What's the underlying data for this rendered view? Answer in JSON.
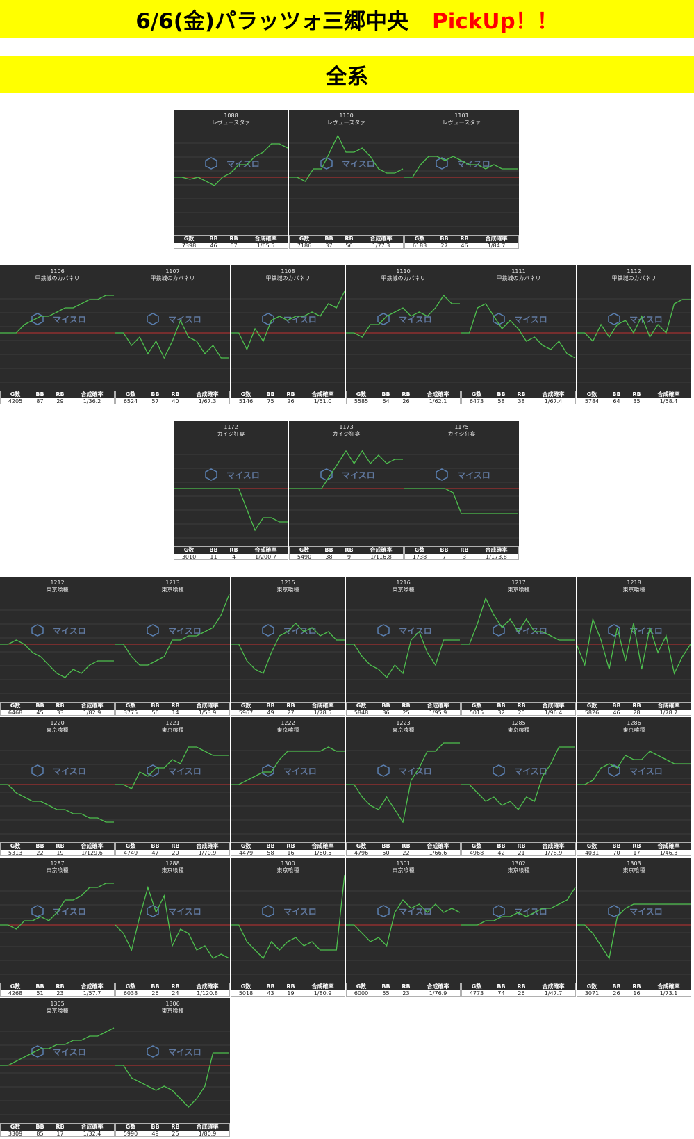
{
  "header": {
    "title": "6/6(金)パラッツォ三郷中央",
    "pickup": "PickUp！！"
  },
  "section": {
    "title": "全系"
  },
  "stat_headers": {
    "g": "G数",
    "bb": "BB",
    "rb": "RB",
    "prob": "合成確率"
  },
  "watermark": "マイスロ",
  "colors": {
    "banner": "#ffff00",
    "pickup": "#ff0000",
    "panel_bg": "#2b2b2b",
    "graph_line": "#4ec04e",
    "zero_line": "#c03030"
  },
  "machines": [
    {
      "num": "1088",
      "name": "レヴュースタァ",
      "g": "7398",
      "bb": "46",
      "rb": "67",
      "prob": "1/65.5",
      "curve": [
        0,
        0,
        -0.05,
        0,
        -0.1,
        -0.2,
        0,
        0.1,
        0.3,
        0.3,
        0.5,
        0.6,
        0.8,
        0.8,
        0.7
      ]
    },
    {
      "num": "1100",
      "name": "レヴュースタァ",
      "g": "7186",
      "bb": "37",
      "rb": "56",
      "prob": "1/77.3",
      "curve": [
        0,
        0,
        -0.1,
        0.2,
        0.2,
        0.6,
        1.0,
        0.6,
        0.6,
        0.7,
        0.5,
        0.2,
        0.1,
        0.1,
        0.2
      ]
    },
    {
      "num": "1101",
      "name": "レヴュースタァ",
      "g": "6183",
      "bb": "27",
      "rb": "46",
      "prob": "1/84.7",
      "curve": [
        0,
        0,
        0.3,
        0.5,
        0.5,
        0.4,
        0.5,
        0.4,
        0.3,
        0.3,
        0.2,
        0.3,
        0.2,
        0.2,
        0.2
      ]
    },
    {
      "num": "1106",
      "name": "甲鉄城のカバネリ",
      "g": "4205",
      "bb": "87",
      "rb": "29",
      "prob": "1/36.2",
      "curve": [
        0,
        0,
        0,
        0.2,
        0.3,
        0.4,
        0.4,
        0.5,
        0.6,
        0.6,
        0.7,
        0.8,
        0.8,
        0.9,
        0.9
      ]
    },
    {
      "num": "1107",
      "name": "甲鉄城のカバネリ",
      "g": "6524",
      "bb": "57",
      "rb": "40",
      "prob": "1/67.3",
      "curve": [
        0,
        0,
        -0.3,
        -0.1,
        -0.5,
        -0.2,
        -0.6,
        -0.2,
        0.3,
        -0.1,
        -0.2,
        -0.5,
        -0.3,
        -0.6,
        -0.6
      ]
    },
    {
      "num": "1108",
      "name": "甲鉄城のカバネリ",
      "g": "5146",
      "bb": "75",
      "rb": "26",
      "prob": "1/51.0",
      "curve": [
        0,
        0,
        -0.4,
        0.1,
        -0.2,
        0.3,
        0.4,
        0.3,
        0.4,
        0.4,
        0.5,
        0.4,
        0.7,
        0.6,
        1.0
      ]
    },
    {
      "num": "1110",
      "name": "甲鉄城のカバネリ",
      "g": "5585",
      "bb": "64",
      "rb": "26",
      "prob": "1/62.1",
      "curve": [
        0,
        0,
        -0.1,
        0.2,
        0.2,
        0.4,
        0.5,
        0.6,
        0.4,
        0.5,
        0.4,
        0.6,
        0.9,
        0.7,
        0.7
      ]
    },
    {
      "num": "1111",
      "name": "甲鉄城のカバネリ",
      "g": "6473",
      "bb": "58",
      "rb": "38",
      "prob": "1/67.4",
      "curve": [
        0,
        0,
        0.6,
        0.7,
        0.4,
        0.1,
        0.3,
        0.1,
        -0.2,
        -0.1,
        -0.3,
        -0.4,
        -0.2,
        -0.5,
        -0.6
      ]
    },
    {
      "num": "1112",
      "name": "甲鉄城のカバネリ",
      "g": "5784",
      "bb": "64",
      "rb": "35",
      "prob": "1/58.4",
      "curve": [
        0,
        0,
        -0.2,
        0.2,
        -0.1,
        0.2,
        0.3,
        0,
        0.4,
        -0.1,
        0.2,
        0,
        0.7,
        0.8,
        0.8
      ]
    },
    {
      "num": "1172",
      "name": "カイジ狂宴",
      "g": "3010",
      "bb": "11",
      "rb": "4",
      "prob": "1/200.7",
      "curve": [
        0,
        0,
        0,
        0,
        0,
        0,
        0,
        0,
        0,
        -0.5,
        -1.0,
        -0.7,
        -0.7,
        -0.8,
        -0.8
      ]
    },
    {
      "num": "1173",
      "name": "カイジ狂宴",
      "g": "5490",
      "bb": "38",
      "rb": "9",
      "prob": "1/116.8",
      "curve": [
        0,
        0,
        0,
        0,
        0,
        0.3,
        0.6,
        0.9,
        0.6,
        0.9,
        0.6,
        0.8,
        0.6,
        0.7,
        0.7
      ]
    },
    {
      "num": "1175",
      "name": "カイジ狂宴",
      "g": "1738",
      "bb": "7",
      "rb": "3",
      "prob": "1/173.8",
      "curve": [
        0,
        0,
        0,
        0,
        0,
        0,
        -0.1,
        -0.6,
        -0.6,
        -0.6,
        -0.6,
        -0.6,
        -0.6,
        -0.6,
        -0.6
      ]
    },
    {
      "num": "1212",
      "name": "東京喰種",
      "g": "6468",
      "bb": "45",
      "rb": "33",
      "prob": "1/82.9",
      "curve": [
        0,
        0,
        0.1,
        0,
        -0.2,
        -0.3,
        -0.5,
        -0.7,
        -0.8,
        -0.6,
        -0.7,
        -0.5,
        -0.4,
        -0.4,
        -0.4
      ]
    },
    {
      "num": "1213",
      "name": "東京喰種",
      "g": "3775",
      "bb": "56",
      "rb": "14",
      "prob": "1/53.9",
      "curve": [
        0,
        0,
        -0.3,
        -0.5,
        -0.5,
        -0.4,
        -0.3,
        0.1,
        0.1,
        0.2,
        0.2,
        0.3,
        0.4,
        0.7,
        1.2
      ]
    },
    {
      "num": "1215",
      "name": "東京喰種",
      "g": "5967",
      "bb": "49",
      "rb": "27",
      "prob": "1/78.5",
      "curve": [
        0,
        0,
        -0.4,
        -0.6,
        -0.7,
        -0.2,
        0.2,
        0.3,
        0.5,
        0.3,
        0.4,
        0.2,
        0.3,
        0.1,
        0.1
      ]
    },
    {
      "num": "1216",
      "name": "東京喰種",
      "g": "5848",
      "bb": "36",
      "rb": "25",
      "prob": "1/95.9",
      "curve": [
        0,
        0,
        -0.3,
        -0.5,
        -0.6,
        -0.8,
        -0.5,
        -0.7,
        0.1,
        0.3,
        -0.2,
        -0.5,
        0.1,
        0.1,
        0.1
      ]
    },
    {
      "num": "1217",
      "name": "東京喰種",
      "g": "5015",
      "bb": "32",
      "rb": "20",
      "prob": "1/96.4",
      "curve": [
        0,
        0,
        0.5,
        1.1,
        0.7,
        0.4,
        0.6,
        0.3,
        0.6,
        0.3,
        0.3,
        0.2,
        0.1,
        0.1,
        0.1
      ]
    },
    {
      "num": "1218",
      "name": "東京喰種",
      "g": "5826",
      "bb": "46",
      "rb": "28",
      "prob": "1/78.7",
      "curve": [
        0,
        -0.5,
        0.6,
        0.1,
        -0.6,
        0.4,
        -0.4,
        0.5,
        -0.6,
        0.4,
        -0.2,
        0.2,
        -0.7,
        -0.3,
        0
      ]
    },
    {
      "num": "1220",
      "name": "東京喰種",
      "g": "5313",
      "bb": "22",
      "rb": "19",
      "prob": "1/129.6",
      "curve": [
        0,
        0,
        -0.2,
        -0.3,
        -0.4,
        -0.4,
        -0.5,
        -0.6,
        -0.6,
        -0.7,
        -0.7,
        -0.8,
        -0.8,
        -0.9,
        -0.9
      ]
    },
    {
      "num": "1221",
      "name": "東京喰種",
      "g": "4749",
      "bb": "47",
      "rb": "20",
      "prob": "1/70.9",
      "curve": [
        0,
        0,
        -0.1,
        0.3,
        0.2,
        0.4,
        0.4,
        0.6,
        0.5,
        0.9,
        0.9,
        0.8,
        0.7,
        0.7,
        0.7
      ]
    },
    {
      "num": "1222",
      "name": "東京喰種",
      "g": "4479",
      "bb": "58",
      "rb": "16",
      "prob": "1/60.5",
      "curve": [
        0,
        0,
        0.1,
        0.2,
        0.3,
        0.3,
        0.6,
        0.8,
        0.8,
        0.8,
        0.8,
        0.8,
        0.9,
        0.8,
        0.8
      ]
    },
    {
      "num": "1223",
      "name": "東京喰種",
      "g": "4796",
      "bb": "50",
      "rb": "22",
      "prob": "1/66.6",
      "curve": [
        0,
        0,
        -0.3,
        -0.5,
        -0.6,
        -0.3,
        -0.6,
        -0.9,
        0.1,
        0.4,
        0.8,
        0.8,
        1.0,
        1.0,
        1.0
      ]
    },
    {
      "num": "1285",
      "name": "東京喰種",
      "g": "4968",
      "bb": "42",
      "rb": "21",
      "prob": "1/78.9",
      "curve": [
        0,
        0,
        -0.2,
        -0.4,
        -0.3,
        -0.5,
        -0.4,
        -0.6,
        -0.3,
        -0.4,
        0.2,
        0.5,
        0.9,
        0.9,
        0.9
      ]
    },
    {
      "num": "1286",
      "name": "東京喰種",
      "g": "4031",
      "bb": "70",
      "rb": "17",
      "prob": "1/46.3",
      "curve": [
        0,
        0,
        0.1,
        0.4,
        0.5,
        0.4,
        0.7,
        0.6,
        0.6,
        0.8,
        0.7,
        0.6,
        0.5,
        0.5,
        0.5
      ]
    },
    {
      "num": "1287",
      "name": "東京喰種",
      "g": "4268",
      "bb": "51",
      "rb": "23",
      "prob": "1/57.7",
      "curve": [
        0,
        0,
        -0.1,
        0.1,
        0.1,
        0.2,
        0.1,
        0.3,
        0.6,
        0.6,
        0.7,
        0.9,
        0.9,
        1.0,
        1.0
      ]
    },
    {
      "num": "1288",
      "name": "東京喰種",
      "g": "6038",
      "bb": "26",
      "rb": "24",
      "prob": "1/120.8",
      "curve": [
        0,
        -0.2,
        -0.6,
        0.2,
        0.9,
        0.3,
        0.7,
        -0.5,
        -0.1,
        -0.2,
        -0.6,
        -0.5,
        -0.8,
        -0.7,
        -0.8
      ]
    },
    {
      "num": "1300",
      "name": "東京喰種",
      "g": "5018",
      "bb": "43",
      "rb": "19",
      "prob": "1/80.9",
      "curve": [
        0,
        0,
        -0.4,
        -0.6,
        -0.8,
        -0.4,
        -0.6,
        -0.4,
        -0.3,
        -0.5,
        -0.4,
        -0.6,
        -0.6,
        -0.6,
        1.2
      ]
    },
    {
      "num": "1301",
      "name": "東京喰種",
      "g": "6000",
      "bb": "55",
      "rb": "23",
      "prob": "1/76.9",
      "curve": [
        0,
        0,
        -0.2,
        -0.4,
        -0.3,
        -0.5,
        0.3,
        0.6,
        0.4,
        0.5,
        0.3,
        0.5,
        0.3,
        0.4,
        0.3
      ]
    },
    {
      "num": "1302",
      "name": "東京喰種",
      "g": "4773",
      "bb": "74",
      "rb": "26",
      "prob": "1/47.7",
      "curve": [
        0,
        0,
        0,
        0.1,
        0.1,
        0.2,
        0.2,
        0.3,
        0.2,
        0.3,
        0.4,
        0.4,
        0.5,
        0.6,
        0.9
      ]
    },
    {
      "num": "1303",
      "name": "東京喰種",
      "g": "3071",
      "bb": "26",
      "rb": "16",
      "prob": "1/73.1",
      "curve": [
        0,
        0,
        -0.2,
        -0.5,
        -0.8,
        0.2,
        0.4,
        0.5,
        0.5,
        0.5,
        0.5,
        0.5,
        0.5,
        0.5,
        0.5
      ]
    },
    {
      "num": "1305",
      "name": "東京喰種",
      "g": "3309",
      "bb": "85",
      "rb": "17",
      "prob": "1/32.4",
      "curve": [
        0,
        0,
        0.1,
        0.2,
        0.3,
        0.4,
        0.4,
        0.5,
        0.5,
        0.6,
        0.6,
        0.7,
        0.7,
        0.8,
        0.9
      ]
    },
    {
      "num": "1306",
      "name": "東京喰種",
      "g": "5990",
      "bb": "49",
      "rb": "25",
      "prob": "1/80.9",
      "curve": [
        0,
        0,
        -0.3,
        -0.4,
        -0.5,
        -0.6,
        -0.5,
        -0.6,
        -0.8,
        -1.0,
        -0.8,
        -0.5,
        0.3,
        0.3,
        0.3
      ]
    }
  ]
}
